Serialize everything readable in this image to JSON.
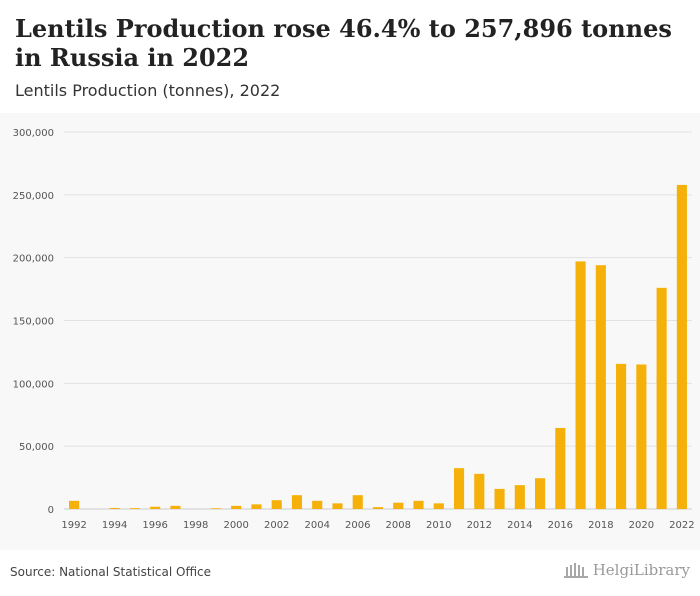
{
  "header": {
    "title": "Lentils Production rose 46.4% to 257,896 tonnes in Russia in 2022",
    "subtitle": "Lentils Production (tonnes), 2022"
  },
  "footer": {
    "source": "Source: National Statistical Office",
    "brand": "HelgiLibrary"
  },
  "colors": {
    "bar": "#f5b10a",
    "grid": "#e2e2e2",
    "axis_text": "#555555"
  },
  "chart_data": {
    "type": "bar",
    "categories": [
      "1992",
      "1993",
      "1994",
      "1995",
      "1996",
      "1997",
      "1998",
      "1999",
      "2000",
      "2001",
      "2002",
      "2003",
      "2004",
      "2005",
      "2006",
      "2007",
      "2008",
      "2009",
      "2010",
      "2011",
      "2012",
      "2013",
      "2014",
      "2015",
      "2016",
      "2017",
      "2018",
      "2019",
      "2020",
      "2021",
      "2022"
    ],
    "values": [
      6500,
      0,
      800,
      700,
      1800,
      2500,
      0,
      600,
      2500,
      3700,
      7000,
      11000,
      6500,
      4500,
      11000,
      1500,
      5000,
      6500,
      4500,
      32500,
      28000,
      16000,
      19000,
      24500,
      64500,
      197000,
      194000,
      115500,
      115000,
      176000,
      257896
    ],
    "x_tick_labels": [
      "1992",
      "1994",
      "1996",
      "1998",
      "2000",
      "2002",
      "2004",
      "2006",
      "2008",
      "2010",
      "2012",
      "2014",
      "2016",
      "2018",
      "2020",
      "2022"
    ],
    "y_ticks": [
      0,
      50000,
      100000,
      150000,
      200000,
      250000,
      300000
    ],
    "y_tick_labels": [
      "0",
      "50,000",
      "100,000",
      "150,000",
      "200,000",
      "250,000",
      "300,000"
    ],
    "ylim": [
      0,
      300000
    ],
    "grid": true,
    "xlabel": "",
    "ylabel": ""
  }
}
